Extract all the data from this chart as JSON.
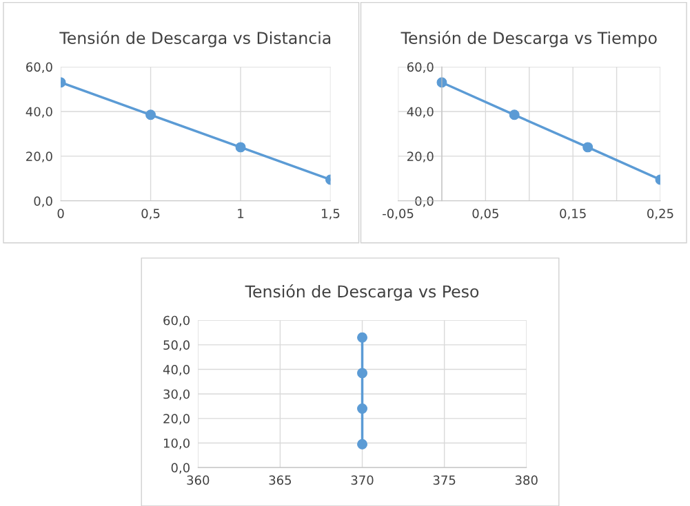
{
  "chart_data": [
    {
      "type": "line",
      "title": "Tensión de Descarga vs Distancia",
      "x": [
        0,
        0.5,
        1,
        1.5
      ],
      "series": [
        {
          "color": "#5b9bd5",
          "values": [
            53.0,
            38.5,
            24.0,
            9.5
          ]
        }
      ],
      "xlim": [
        0,
        1.5
      ],
      "xticks": [
        0,
        {
          "value": 0.5,
          "label": "0,5"
        },
        1,
        {
          "value": 1.5,
          "label": "1,5"
        }
      ],
      "ylim": [
        0,
        60
      ],
      "yticks": [
        {
          "value": 0,
          "label": "0,0"
        },
        {
          "value": 20,
          "label": "20,0"
        },
        {
          "value": 40,
          "label": "40,0"
        },
        {
          "value": 60,
          "label": "60,0"
        }
      ],
      "grid": true,
      "marker": "circle",
      "line_style": "solid"
    },
    {
      "type": "line",
      "title": "Tensión de Descarga vs Tiempo",
      "x": [
        0,
        0.083,
        0.167,
        0.25
      ],
      "series": [
        {
          "color": "#5b9bd5",
          "values": [
            53.0,
            38.5,
            24.0,
            9.5
          ]
        }
      ],
      "xlim": [
        -0.05,
        0.25
      ],
      "xticks": [
        {
          "value": -0.05,
          "label": "-0,05"
        },
        {
          "value": 0,
          "label": null
        },
        {
          "value": 0.05,
          "label": "0,05"
        },
        {
          "value": 0.1,
          "label": null
        },
        {
          "value": 0.15,
          "label": "0,15"
        },
        {
          "value": 0.2,
          "label": null
        },
        {
          "value": 0.25,
          "label": "0,25"
        }
      ],
      "ylim": [
        0,
        60
      ],
      "yticks": [
        {
          "value": 0,
          "label": "0,0"
        },
        {
          "value": 20,
          "label": "20,0"
        },
        {
          "value": 40,
          "label": "40,0"
        },
        {
          "value": 60,
          "label": "60,0"
        }
      ],
      "grid": true,
      "marker": "circle",
      "line_style": "solid"
    },
    {
      "type": "line",
      "title": "Tensión de Descarga vs Peso",
      "x": [
        370,
        370,
        370,
        370
      ],
      "series": [
        {
          "color": "#5b9bd5",
          "values": [
            53.0,
            38.5,
            24.0,
            9.5
          ]
        }
      ],
      "xlim": [
        360,
        380
      ],
      "xticks": [
        360,
        365,
        370,
        375,
        380
      ],
      "ylim": [
        0,
        60
      ],
      "yticks": [
        {
          "value": 0,
          "label": "0,0"
        },
        {
          "value": 10,
          "label": "10,0"
        },
        {
          "value": 20,
          "label": "20,0"
        },
        {
          "value": 30,
          "label": "30,0"
        },
        {
          "value": 40,
          "label": "40,0"
        },
        {
          "value": 50,
          "label": "50,0"
        },
        {
          "value": 60,
          "label": "60,0"
        }
      ],
      "grid": true,
      "marker": "circle",
      "line_style": "solid"
    }
  ]
}
